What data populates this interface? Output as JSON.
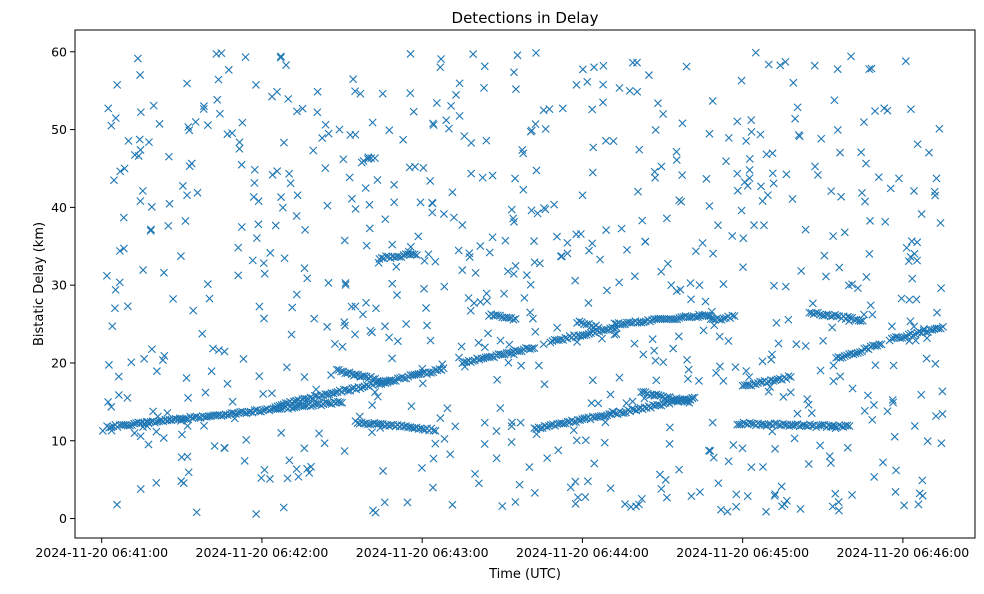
{
  "chart_data": {
    "type": "scatter",
    "title": "Detections in Delay",
    "xlabel": "Time (UTC)",
    "ylabel": "Bistatic Delay (km)",
    "x_axis": {
      "kind": "time",
      "range": [
        "2024-11-20 06:40:50",
        "2024-11-20 06:46:27"
      ],
      "ticks": [
        "2024-11-20 06:41:00",
        "2024-11-20 06:42:00",
        "2024-11-20 06:43:00",
        "2024-11-20 06:44:00",
        "2024-11-20 06:45:00",
        "2024-11-20 06:46:00"
      ]
    },
    "y_axis": {
      "range": [
        -2.5,
        62.8
      ],
      "ticks": [
        0,
        10,
        20,
        30,
        40,
        50,
        60
      ]
    },
    "grid": false,
    "legend": "none",
    "marker": "x",
    "color": "#1f77b4",
    "tracks": [
      {
        "x": [
          "2024-11-20 06:41:02",
          "2024-11-20 06:42:30"
        ],
        "y": [
          11.8,
          15.0
        ]
      },
      {
        "x": [
          "2024-11-20 06:42:05",
          "2024-11-20 06:43:08"
        ],
        "y": [
          14.5,
          19.2
        ]
      },
      {
        "x": [
          "2024-11-20 06:42:28",
          "2024-11-20 06:42:48"
        ],
        "y": [
          19.0,
          17.5
        ]
      },
      {
        "x": [
          "2024-11-20 06:42:35",
          "2024-11-20 06:43:05"
        ],
        "y": [
          12.4,
          11.4
        ]
      },
      {
        "x": [
          "2024-11-20 06:42:44",
          "2024-11-20 06:42:58"
        ],
        "y": [
          33.5,
          34.0
        ]
      },
      {
        "x": [
          "2024-11-20 06:43:15",
          "2024-11-20 06:43:42"
        ],
        "y": [
          20.0,
          22.0
        ]
      },
      {
        "x": [
          "2024-11-20 06:43:25",
          "2024-11-20 06:43:35"
        ],
        "y": [
          26.2,
          25.6
        ]
      },
      {
        "x": [
          "2024-11-20 06:43:42",
          "2024-11-20 06:44:42"
        ],
        "y": [
          11.5,
          15.5
        ]
      },
      {
        "x": [
          "2024-11-20 06:43:48",
          "2024-11-20 06:44:12"
        ],
        "y": [
          22.8,
          24.5
        ]
      },
      {
        "x": [
          "2024-11-20 06:43:58",
          "2024-11-20 06:44:06"
        ],
        "y": [
          25.3,
          24.6
        ]
      },
      {
        "x": [
          "2024-11-20 06:44:12",
          "2024-11-20 06:44:48"
        ],
        "y": [
          25.0,
          26.2
        ]
      },
      {
        "x": [
          "2024-11-20 06:44:22",
          "2024-11-20 06:44:40"
        ],
        "y": [
          16.2,
          15.0
        ]
      },
      {
        "x": [
          "2024-11-20 06:44:48",
          "2024-11-20 06:44:57"
        ],
        "y": [
          25.5,
          26.0
        ]
      },
      {
        "x": [
          "2024-11-20 06:45:00",
          "2024-11-20 06:45:18"
        ],
        "y": [
          17.0,
          18.2
        ]
      },
      {
        "x": [
          "2024-11-20 06:44:58",
          "2024-11-20 06:45:40"
        ],
        "y": [
          12.2,
          11.8
        ]
      },
      {
        "x": [
          "2024-11-20 06:45:25",
          "2024-11-20 06:45:45"
        ],
        "y": [
          26.5,
          25.5
        ]
      },
      {
        "x": [
          "2024-11-20 06:45:35",
          "2024-11-20 06:45:52"
        ],
        "y": [
          20.5,
          22.5
        ]
      },
      {
        "x": [
          "2024-11-20 06:45:55",
          "2024-11-20 06:46:15"
        ],
        "y": [
          23.0,
          24.6
        ]
      }
    ],
    "clutter": {
      "points_approx": 760,
      "x_range": [
        "2024-11-20 06:41:00",
        "2024-11-20 06:46:15"
      ],
      "y_range": [
        0.5,
        60.0
      ]
    }
  }
}
